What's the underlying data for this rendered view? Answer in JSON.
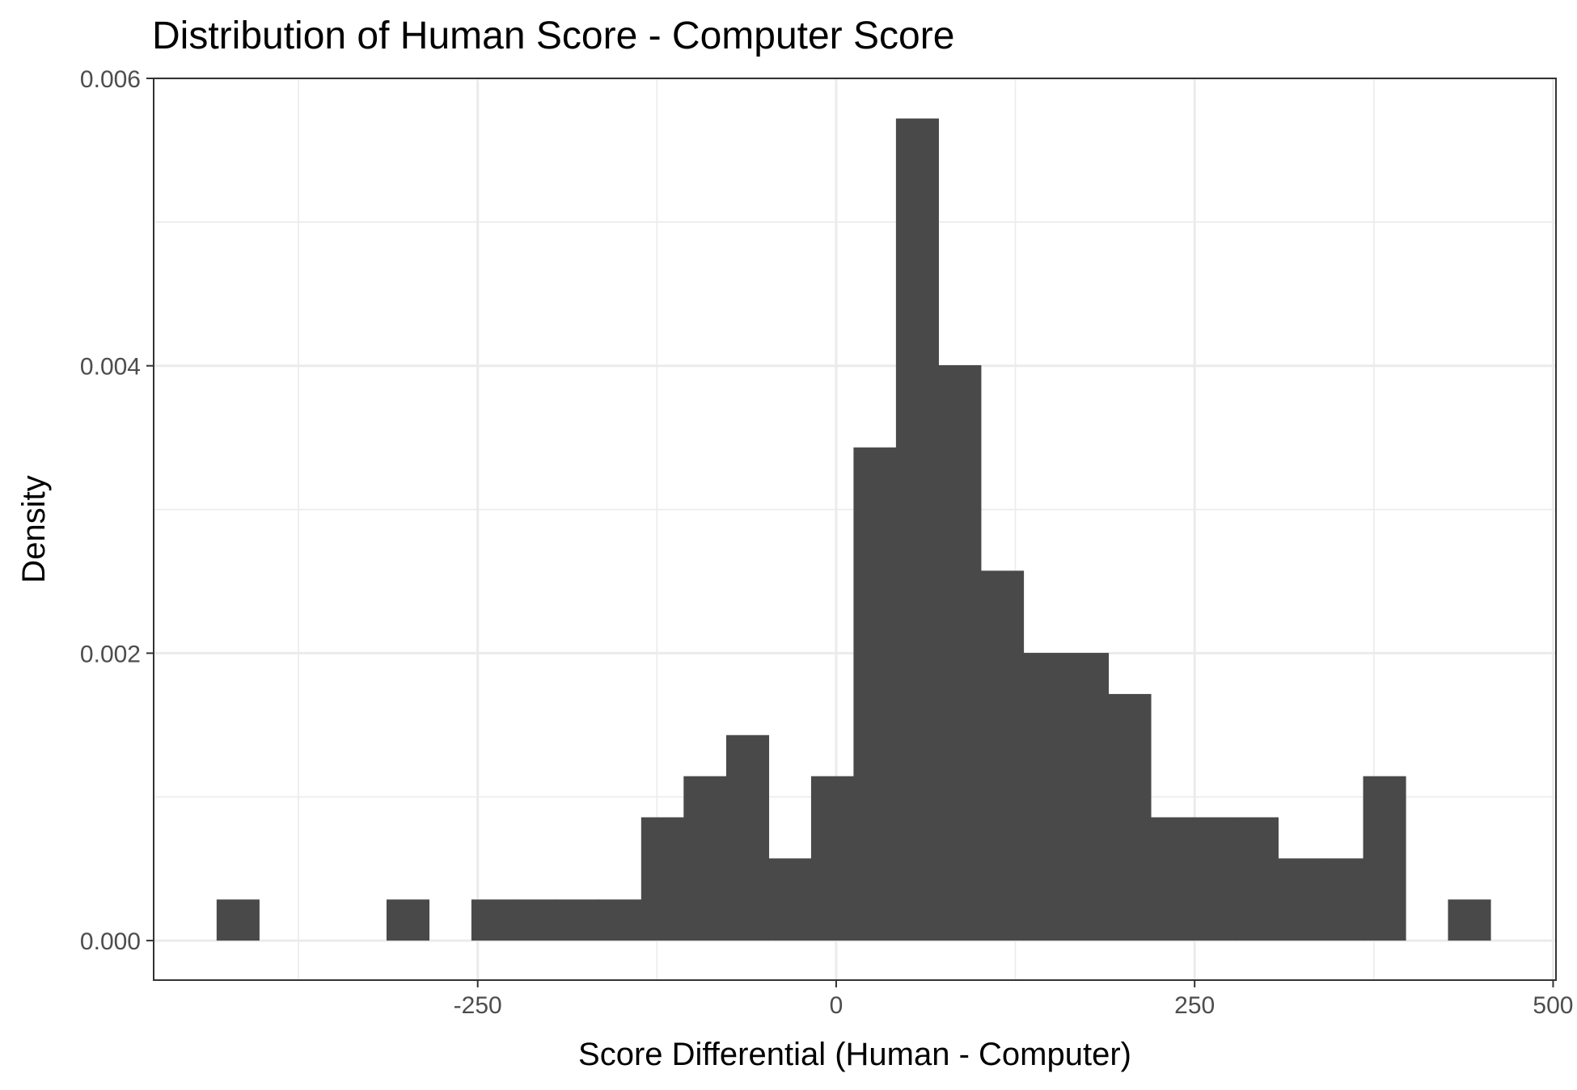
{
  "chart_data": {
    "type": "bar",
    "subtype": "histogram",
    "title": "Distribution of Human Score - Computer Score",
    "xlabel": "Score Differential (Human - Computer)",
    "ylabel": "Density",
    "xlim": [
      -476,
      502
    ],
    "ylim": [
      -0.000275,
      0.006
    ],
    "x_ticks": [
      -250,
      0,
      250,
      500
    ],
    "x_tick_labels": [
      "-250",
      "0",
      "250",
      "500"
    ],
    "y_ticks": [
      0,
      0.002,
      0.004,
      0.006
    ],
    "y_tick_labels": [
      "0.000",
      "0.002",
      "0.004",
      "0.006"
    ],
    "grid": true,
    "bar_color": "#494949",
    "bin_width": 29.6,
    "bins": [
      {
        "x0": -432.1,
        "x1": -402.5,
        "density": 0.000286
      },
      {
        "x0": -402.5,
        "x1": -372.9,
        "density": 0
      },
      {
        "x0": -372.9,
        "x1": -343.3,
        "density": 0
      },
      {
        "x0": -343.3,
        "x1": -313.6,
        "density": 0
      },
      {
        "x0": -313.6,
        "x1": -284.0,
        "density": 0.000286
      },
      {
        "x0": -284.0,
        "x1": -254.4,
        "density": 0
      },
      {
        "x0": -254.4,
        "x1": -224.8,
        "density": 0.000286
      },
      {
        "x0": -224.8,
        "x1": -195.2,
        "density": 0.000286
      },
      {
        "x0": -195.2,
        "x1": -165.6,
        "density": 0.000286
      },
      {
        "x0": -165.6,
        "x1": -136.0,
        "density": 0.000286
      },
      {
        "x0": -136.0,
        "x1": -106.4,
        "density": 0.000858
      },
      {
        "x0": -106.4,
        "x1": -76.7,
        "density": 0.001144
      },
      {
        "x0": -76.7,
        "x1": -47.1,
        "density": 0.00143
      },
      {
        "x0": -47.1,
        "x1": -17.5,
        "density": 0.000572
      },
      {
        "x0": -17.5,
        "x1": 12.1,
        "density": 0.001144
      },
      {
        "x0": 12.1,
        "x1": 41.7,
        "density": 0.003432
      },
      {
        "x0": 41.7,
        "x1": 71.3,
        "density": 0.005721
      },
      {
        "x0": 71.3,
        "x1": 100.9,
        "density": 0.004004
      },
      {
        "x0": 100.9,
        "x1": 130.6,
        "density": 0.002574
      },
      {
        "x0": 130.6,
        "x1": 160.2,
        "density": 0.002002
      },
      {
        "x0": 160.2,
        "x1": 189.8,
        "density": 0.002002
      },
      {
        "x0": 189.8,
        "x1": 219.4,
        "density": 0.001716
      },
      {
        "x0": 219.4,
        "x1": 249.0,
        "density": 0.000858
      },
      {
        "x0": 249.0,
        "x1": 278.6,
        "density": 0.000858
      },
      {
        "x0": 278.6,
        "x1": 308.2,
        "density": 0.000858
      },
      {
        "x0": 308.2,
        "x1": 337.9,
        "density": 0.000572
      },
      {
        "x0": 337.9,
        "x1": 367.5,
        "density": 0.000572
      },
      {
        "x0": 367.5,
        "x1": 397.1,
        "density": 0.001144
      },
      {
        "x0": 397.1,
        "x1": 426.7,
        "density": 0
      },
      {
        "x0": 426.7,
        "x1": 456.3,
        "density": 0.000286
      }
    ]
  }
}
